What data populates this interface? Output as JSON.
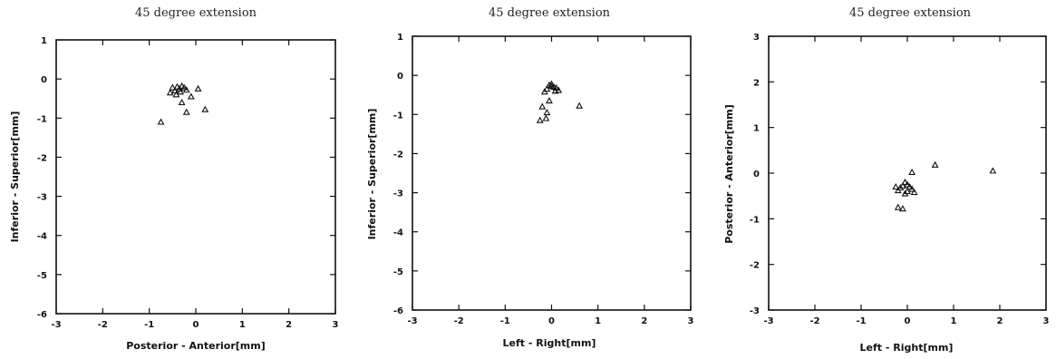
{
  "chart_data": [
    {
      "type": "scatter",
      "title": "45 degree extension",
      "xlabel": "Posterior - Anterior[mm]",
      "ylabel": "Inferior - Superior[mm]",
      "xlim": [
        -3,
        3
      ],
      "ylim": [
        -6,
        1
      ],
      "xticks": [
        -3,
        -2,
        -1,
        0,
        1,
        2,
        3
      ],
      "yticks": [
        1,
        0,
        -1,
        -2,
        -3,
        -4,
        -5,
        -6
      ],
      "xtick_labels": [
        "-3",
        "-2",
        "-1",
        "0",
        "1",
        "2",
        "3"
      ],
      "ytick_labels": [
        "1",
        "0",
        "-1",
        "-2",
        "-3",
        "-4",
        "-5",
        "-6"
      ],
      "grid": false,
      "legend": "none",
      "points": [
        {
          "x": -0.5,
          "y": -0.22
        },
        {
          "x": -0.45,
          "y": -0.3
        },
        {
          "x": -0.4,
          "y": -0.2
        },
        {
          "x": -0.35,
          "y": -0.25
        },
        {
          "x": -0.3,
          "y": -0.18
        },
        {
          "x": -0.25,
          "y": -0.22
        },
        {
          "x": -0.2,
          "y": -0.28
        },
        {
          "x": -0.55,
          "y": -0.35
        },
        {
          "x": -0.42,
          "y": -0.4
        },
        {
          "x": -0.33,
          "y": -0.33
        },
        {
          "x": 0.05,
          "y": -0.25
        },
        {
          "x": -0.1,
          "y": -0.45
        },
        {
          "x": -0.3,
          "y": -0.6
        },
        {
          "x": -0.2,
          "y": -0.85
        },
        {
          "x": 0.2,
          "y": -0.78
        },
        {
          "x": -0.75,
          "y": -1.1
        }
      ]
    },
    {
      "type": "scatter",
      "title": "45 degree extension",
      "xlabel": "Left - Right[mm]",
      "ylabel": "Inferior - Superior[mm]",
      "xlim": [
        -3,
        3
      ],
      "ylim": [
        -6,
        1
      ],
      "xticks": [
        -3,
        -2,
        -1,
        0,
        1,
        2,
        3
      ],
      "yticks": [
        1,
        0,
        -1,
        -2,
        -3,
        -4,
        -5,
        -6
      ],
      "xtick_labels": [
        "-3",
        "-2",
        "-1",
        "0",
        "1",
        "2",
        "3"
      ],
      "ytick_labels": [
        "1",
        "0",
        "-1",
        "-2",
        "-3",
        "-4",
        "-5",
        "-6"
      ],
      "grid": false,
      "legend": "none",
      "points": [
        {
          "x": 0.0,
          "y": -0.28
        },
        {
          "x": 0.05,
          "y": -0.3
        },
        {
          "x": 0.1,
          "y": -0.32
        },
        {
          "x": -0.05,
          "y": -0.25
        },
        {
          "x": -0.1,
          "y": -0.35
        },
        {
          "x": 0.08,
          "y": -0.4
        },
        {
          "x": -0.15,
          "y": -0.42
        },
        {
          "x": 0.15,
          "y": -0.38
        },
        {
          "x": 0.0,
          "y": -0.22
        },
        {
          "x": -0.05,
          "y": -0.65
        },
        {
          "x": -0.2,
          "y": -0.8
        },
        {
          "x": -0.1,
          "y": -0.95
        },
        {
          "x": -0.25,
          "y": -1.15
        },
        {
          "x": -0.12,
          "y": -1.1
        },
        {
          "x": 0.6,
          "y": -0.78
        }
      ]
    },
    {
      "type": "scatter",
      "title": "45 degree extension",
      "xlabel": "Left - Right[mm]",
      "ylabel": "Posterior - Anterior[mm]",
      "xlim": [
        -3,
        3
      ],
      "ylim": [
        -3,
        3
      ],
      "xticks": [
        -3,
        -2,
        -1,
        0,
        1,
        2,
        3
      ],
      "yticks": [
        3,
        2,
        1,
        0,
        -1,
        -2,
        -3
      ],
      "xtick_labels": [
        "-3",
        "-2",
        "-1",
        "0",
        "1",
        "2",
        "3"
      ],
      "ytick_labels": [
        "3",
        "2",
        "1",
        "0",
        "-1",
        "-2",
        "-3"
      ],
      "grid": false,
      "legend": "none",
      "points": [
        {
          "x": -0.05,
          "y": -0.2
        },
        {
          "x": 0.0,
          "y": -0.25
        },
        {
          "x": -0.1,
          "y": -0.28
        },
        {
          "x": 0.05,
          "y": -0.3
        },
        {
          "x": -0.15,
          "y": -0.32
        },
        {
          "x": 0.1,
          "y": -0.35
        },
        {
          "x": -0.2,
          "y": -0.38
        },
        {
          "x": 0.0,
          "y": -0.4
        },
        {
          "x": -0.05,
          "y": -0.45
        },
        {
          "x": 0.15,
          "y": -0.42
        },
        {
          "x": -0.25,
          "y": -0.3
        },
        {
          "x": 0.1,
          "y": 0.02
        },
        {
          "x": -0.2,
          "y": -0.75
        },
        {
          "x": -0.1,
          "y": -0.78
        },
        {
          "x": 0.6,
          "y": 0.18
        },
        {
          "x": 1.85,
          "y": 0.05
        }
      ]
    }
  ]
}
